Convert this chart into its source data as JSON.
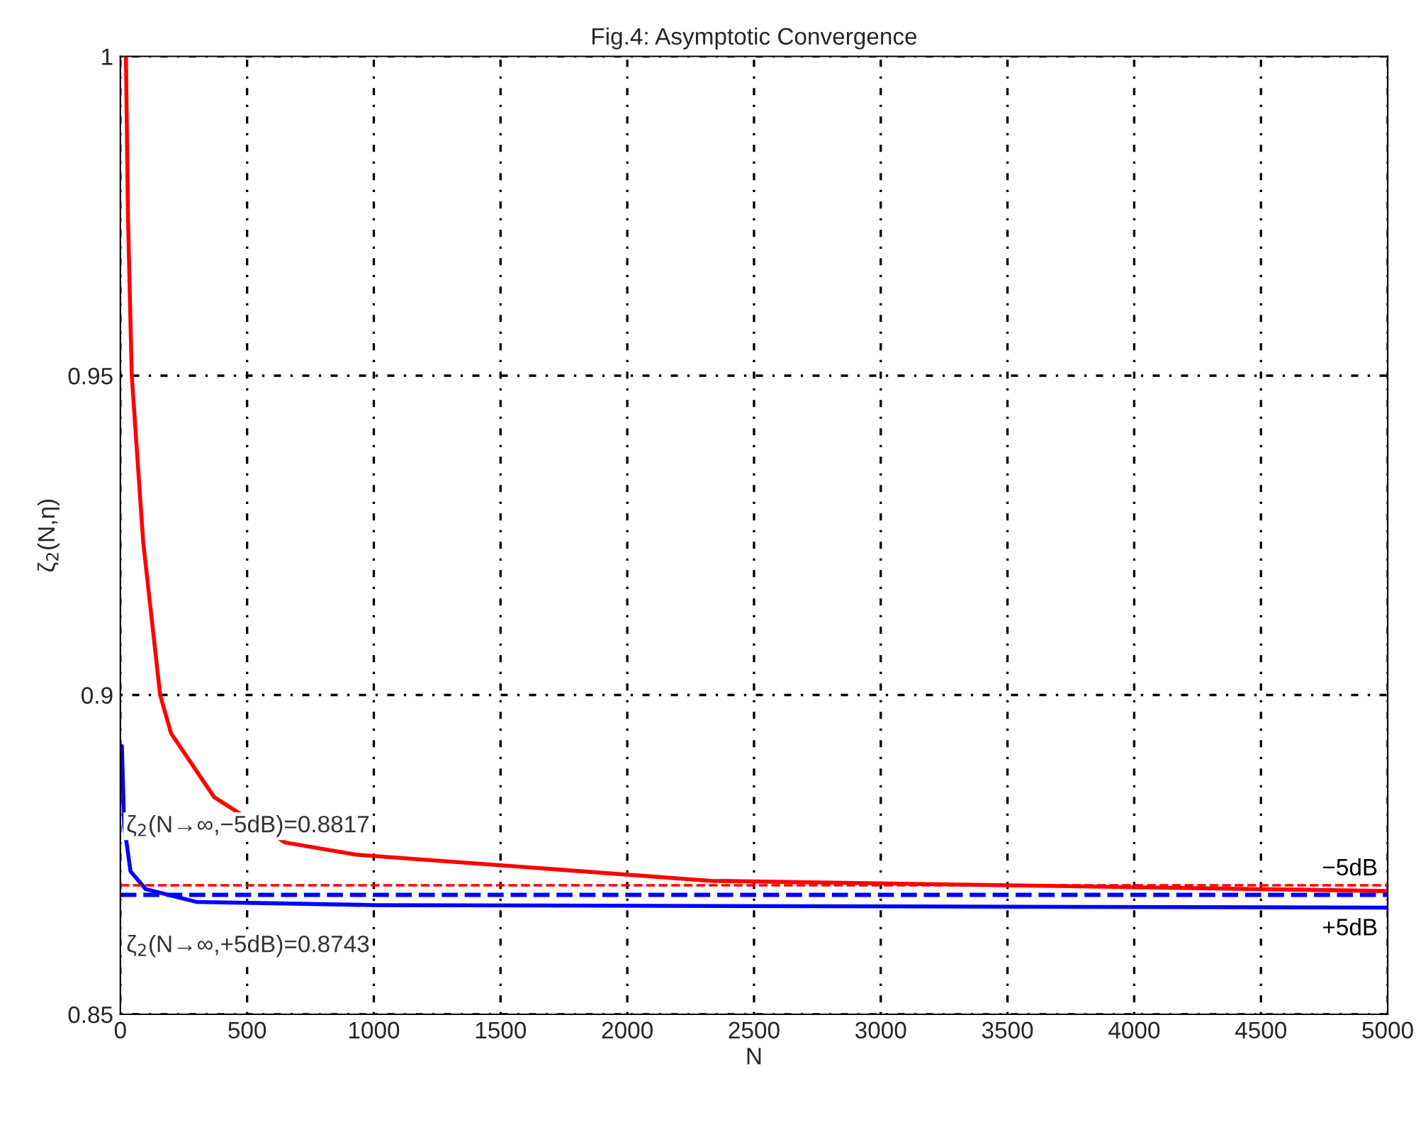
{
  "chart_data": {
    "type": "line",
    "title": "Fig.4: Asymptotic Convergence",
    "xlabel": "N",
    "ylabel": "ζ$_{2}$(N,η)",
    "series": [
      {
        "name": "−5dB",
        "color": "#ff0000",
        "x": [
          22,
          30,
          45,
          90,
          157,
          200,
          370,
          650,
          930,
          2330,
          5000
        ],
        "values": [
          1.0,
          0.975,
          0.95,
          0.924,
          0.9,
          0.894,
          0.884,
          0.8769,
          0.875,
          0.8709,
          0.8693
        ]
      },
      {
        "name": "+5dB",
        "color": "#0000ff",
        "x": [
          6,
          15,
          40,
          100,
          300,
          1000,
          5000
        ],
        "values": [
          0.892,
          0.8796,
          0.8724,
          0.8696,
          0.8676,
          0.8671,
          0.8667
        ]
      }
    ],
    "ref_lines": [
      {
        "axis": "y",
        "value": 0.8702,
        "color": "#ff0000",
        "line_style": "dashed"
      },
      {
        "axis": "y",
        "value": 0.8687,
        "color": "#0000ff",
        "line_style": "dashed"
      }
    ],
    "annotations": [
      "ζ$_{2}$(N→∞,−5dB)=0.8817",
      "ζ$_{2}$(N→∞,+5dB)=0.8743"
    ],
    "xlim": [
      0,
      5000
    ],
    "ylim": [
      0.85,
      1
    ],
    "xticks": [
      0,
      500,
      1000,
      1500,
      2000,
      2500,
      3000,
      3500,
      4000,
      4500,
      5000
    ],
    "yticks": [
      0.85,
      0.9,
      0.95,
      1
    ],
    "grid": true,
    "legend": false,
    "marker": "none",
    "line_style": "solid"
  }
}
